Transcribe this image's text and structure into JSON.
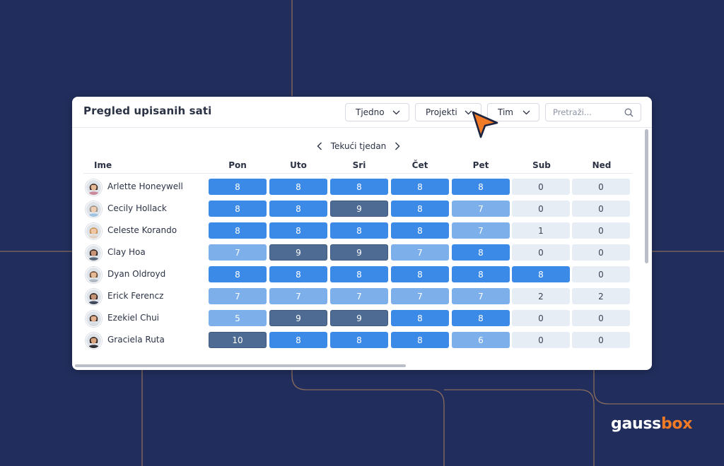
{
  "header": {
    "title": "Pregled upisanih sati",
    "filters": [
      {
        "label": "Tjedno"
      },
      {
        "label": "Projekti"
      },
      {
        "label": "Tim"
      }
    ],
    "search_placeholder": "Pretraži..."
  },
  "week_label": "Tekući tjedan",
  "columns": {
    "name": "Ime",
    "days": [
      "Pon",
      "Uto",
      "Sri",
      "Čet",
      "Pet",
      "Sub",
      "Ned"
    ]
  },
  "rows": [
    {
      "name": "Arlette Honeywell",
      "hours": [
        8,
        8,
        8,
        8,
        8,
        0,
        0
      ]
    },
    {
      "name": "Cecily Hollack",
      "hours": [
        8,
        8,
        9,
        8,
        7,
        0,
        0
      ]
    },
    {
      "name": "Celeste Korando",
      "hours": [
        8,
        8,
        8,
        8,
        7,
        1,
        0
      ]
    },
    {
      "name": "Clay Hoa",
      "hours": [
        7,
        9,
        9,
        7,
        8,
        0,
        0
      ]
    },
    {
      "name": "Dyan Oldroyd",
      "hours": [
        8,
        8,
        8,
        8,
        8,
        8,
        0
      ]
    },
    {
      "name": "Erick Ferencz",
      "hours": [
        7,
        7,
        7,
        7,
        7,
        2,
        2
      ]
    },
    {
      "name": "Ezekiel Chui",
      "hours": [
        5,
        9,
        9,
        8,
        8,
        0,
        0
      ]
    },
    {
      "name": "Graciela Ruta",
      "hours": [
        10,
        8,
        8,
        8,
        6,
        0,
        0
      ]
    }
  ],
  "cell_colors": {
    "full_day": "#3c8ae8",
    "partial_day": "#7db0ea",
    "overtime": "#4d6b93",
    "minimal": "#e6edf5"
  },
  "avatar_colors": [
    {
      "skin": "#e7b896",
      "hair": "#3a2a22",
      "shirt": "#c98a9a"
    },
    {
      "skin": "#efcdb3",
      "hair": "#9a8f86",
      "shirt": "#9ec3e0"
    },
    {
      "skin": "#f0c7a5",
      "hair": "#c79356",
      "shirt": "#e2d3c6"
    },
    {
      "skin": "#c99578",
      "hair": "#2c2420",
      "shirt": "#5a6a7a"
    },
    {
      "skin": "#e5b896",
      "hair": "#6b4a32",
      "shirt": "#b0b8c4"
    },
    {
      "skin": "#c49274",
      "hair": "#2e241d",
      "shirt": "#3f4a5a"
    },
    {
      "skin": "#e3b08f",
      "hair": "#3a2c24",
      "shirt": "#d8dde4"
    },
    {
      "skin": "#d9a27f",
      "hair": "#2a1f1a",
      "shirt": "#2f2f35"
    }
  ],
  "brand": {
    "logo_main": "gauss",
    "logo_accent": "box",
    "accent_color": "#f07a26"
  }
}
